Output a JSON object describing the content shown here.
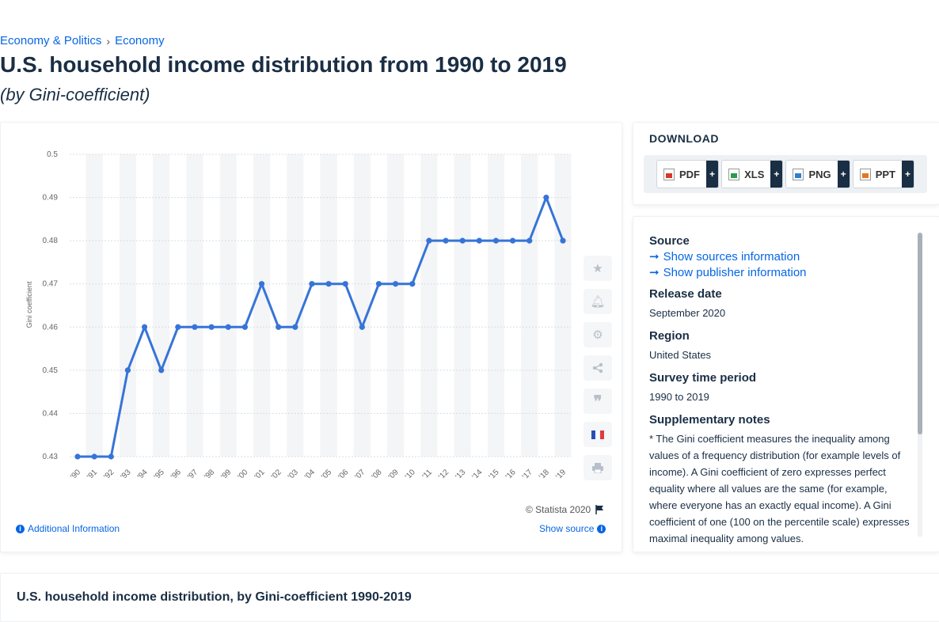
{
  "breadcrumb": {
    "items": [
      "Economy & Politics",
      "Economy"
    ],
    "separator": "›"
  },
  "page": {
    "title": "U.S. household income distribution from 1990 to 2019",
    "subtitle": "(by Gini-coefficient)"
  },
  "chart_data": {
    "type": "line",
    "title": "",
    "xlabel": "",
    "ylabel": "Gini coefficient",
    "categories": [
      "'90",
      "'91",
      "'92",
      "'93",
      "'94",
      "'95",
      "'96",
      "'97",
      "'98",
      "'99",
      "'00",
      "'01",
      "'02",
      "'03",
      "'04",
      "'05",
      "'06",
      "'07",
      "'08",
      "'09",
      "'10",
      "'11",
      "'12",
      "'13",
      "'14",
      "'15",
      "'16",
      "'17",
      "'18",
      "'19"
    ],
    "series": [
      {
        "values": [
          0.43,
          0.43,
          0.43,
          0.45,
          0.46,
          0.45,
          0.46,
          0.46,
          0.46,
          0.46,
          0.46,
          0.47,
          0.46,
          0.46,
          0.47,
          0.47,
          0.47,
          0.46,
          0.47,
          0.47,
          0.47,
          0.48,
          0.48,
          0.48,
          0.48,
          0.48,
          0.48,
          0.48,
          0.49,
          0.48
        ]
      }
    ],
    "yticks": [
      "0.43",
      "0.44",
      "0.45",
      "0.46",
      "0.47",
      "0.48",
      "0.49",
      "0.5"
    ],
    "ylim": [
      0.43,
      0.5
    ],
    "grid": true,
    "line_color": "#3674d8"
  },
  "toolbar": {
    "icons": [
      "star-icon",
      "bell-icon",
      "gear-icon",
      "share-icon",
      "quote-icon",
      "french-flag-icon",
      "print-icon"
    ]
  },
  "footer": {
    "copyright": "© Statista 2020",
    "additional_info": "Additional Information",
    "show_source": "Show source"
  },
  "download": {
    "title": "DOWNLOAD",
    "buttons": [
      {
        "label": "PDF",
        "color": "#d9352c"
      },
      {
        "label": "XLS",
        "color": "#2e9a4b"
      },
      {
        "label": "PNG",
        "color": "#2f7fd0"
      },
      {
        "label": "PPT",
        "color": "#e8741e"
      }
    ],
    "plus": "+"
  },
  "info": {
    "source_label": "Source",
    "show_sources": "Show sources information",
    "show_publisher": "Show publisher information",
    "release_label": "Release date",
    "release_value": "September 2020",
    "region_label": "Region",
    "region_value": "United States",
    "survey_label": "Survey time period",
    "survey_value": "1990 to 2019",
    "notes_label": "Supplementary notes",
    "notes_value": "* The Gini coefficient measures the inequality among values of a frequency distribution (for example levels of income). A Gini coefficient of zero expresses perfect equality where all values are the same (for example, where everyone has an exactly equal income). A Gini coefficient of one (100 on the percentile scale) expresses maximal inequality among values."
  },
  "related": {
    "title": "U.S. household income distribution, by Gini-coefficient 1990-2019"
  }
}
